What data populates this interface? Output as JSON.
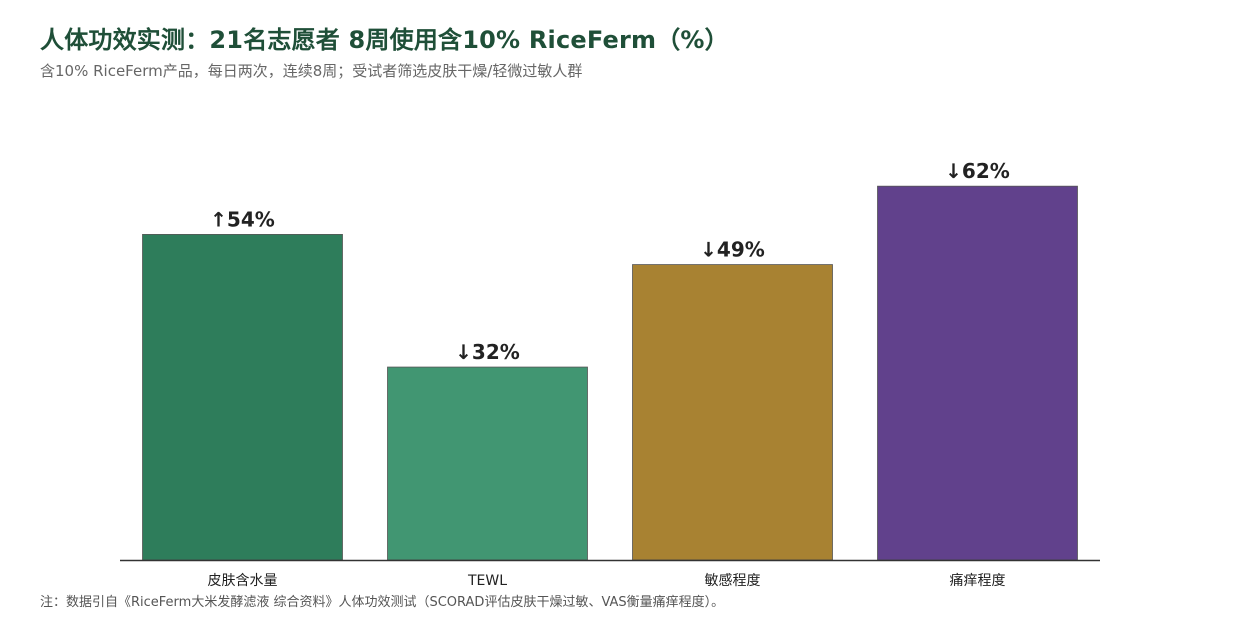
{
  "header": {
    "title": "人体功效实测：21名志愿者 8周使用含10% RiceFerm（%）",
    "subtitle": "含10% RiceFerm产品，每日两次，连续8周；受试者筛选皮肤干燥/轻微过敏人群"
  },
  "footnote": "注：数据引自《RiceFerm大米发酵滤液 综合资料》人体功效测试（SCORAD评估皮肤干燥过敏、VAS衡量痛痒程度）。",
  "chart_data": {
    "type": "bar",
    "title": "人体功效实测：21名志愿者 8周使用含10% RiceFerm（%）",
    "subtitle": "含10% RiceFerm产品，每日两次，连续8周；受试者筛选皮肤干燥/轻微过敏人群",
    "categories": [
      "皮肤含水量",
      "TEWL",
      "敏感程度",
      "痛痒程度"
    ],
    "values": [
      54,
      32,
      49,
      62
    ],
    "data_labels": [
      "↑54%",
      "↓32%",
      "↓49%",
      "↓62%"
    ],
    "colors": [
      "#2e7d5b",
      "#419672",
      "#a88232",
      "#61418c"
    ],
    "ylim": [
      0,
      68
    ],
    "grid": false,
    "legend": "none",
    "xlabel": "",
    "ylabel": ""
  }
}
